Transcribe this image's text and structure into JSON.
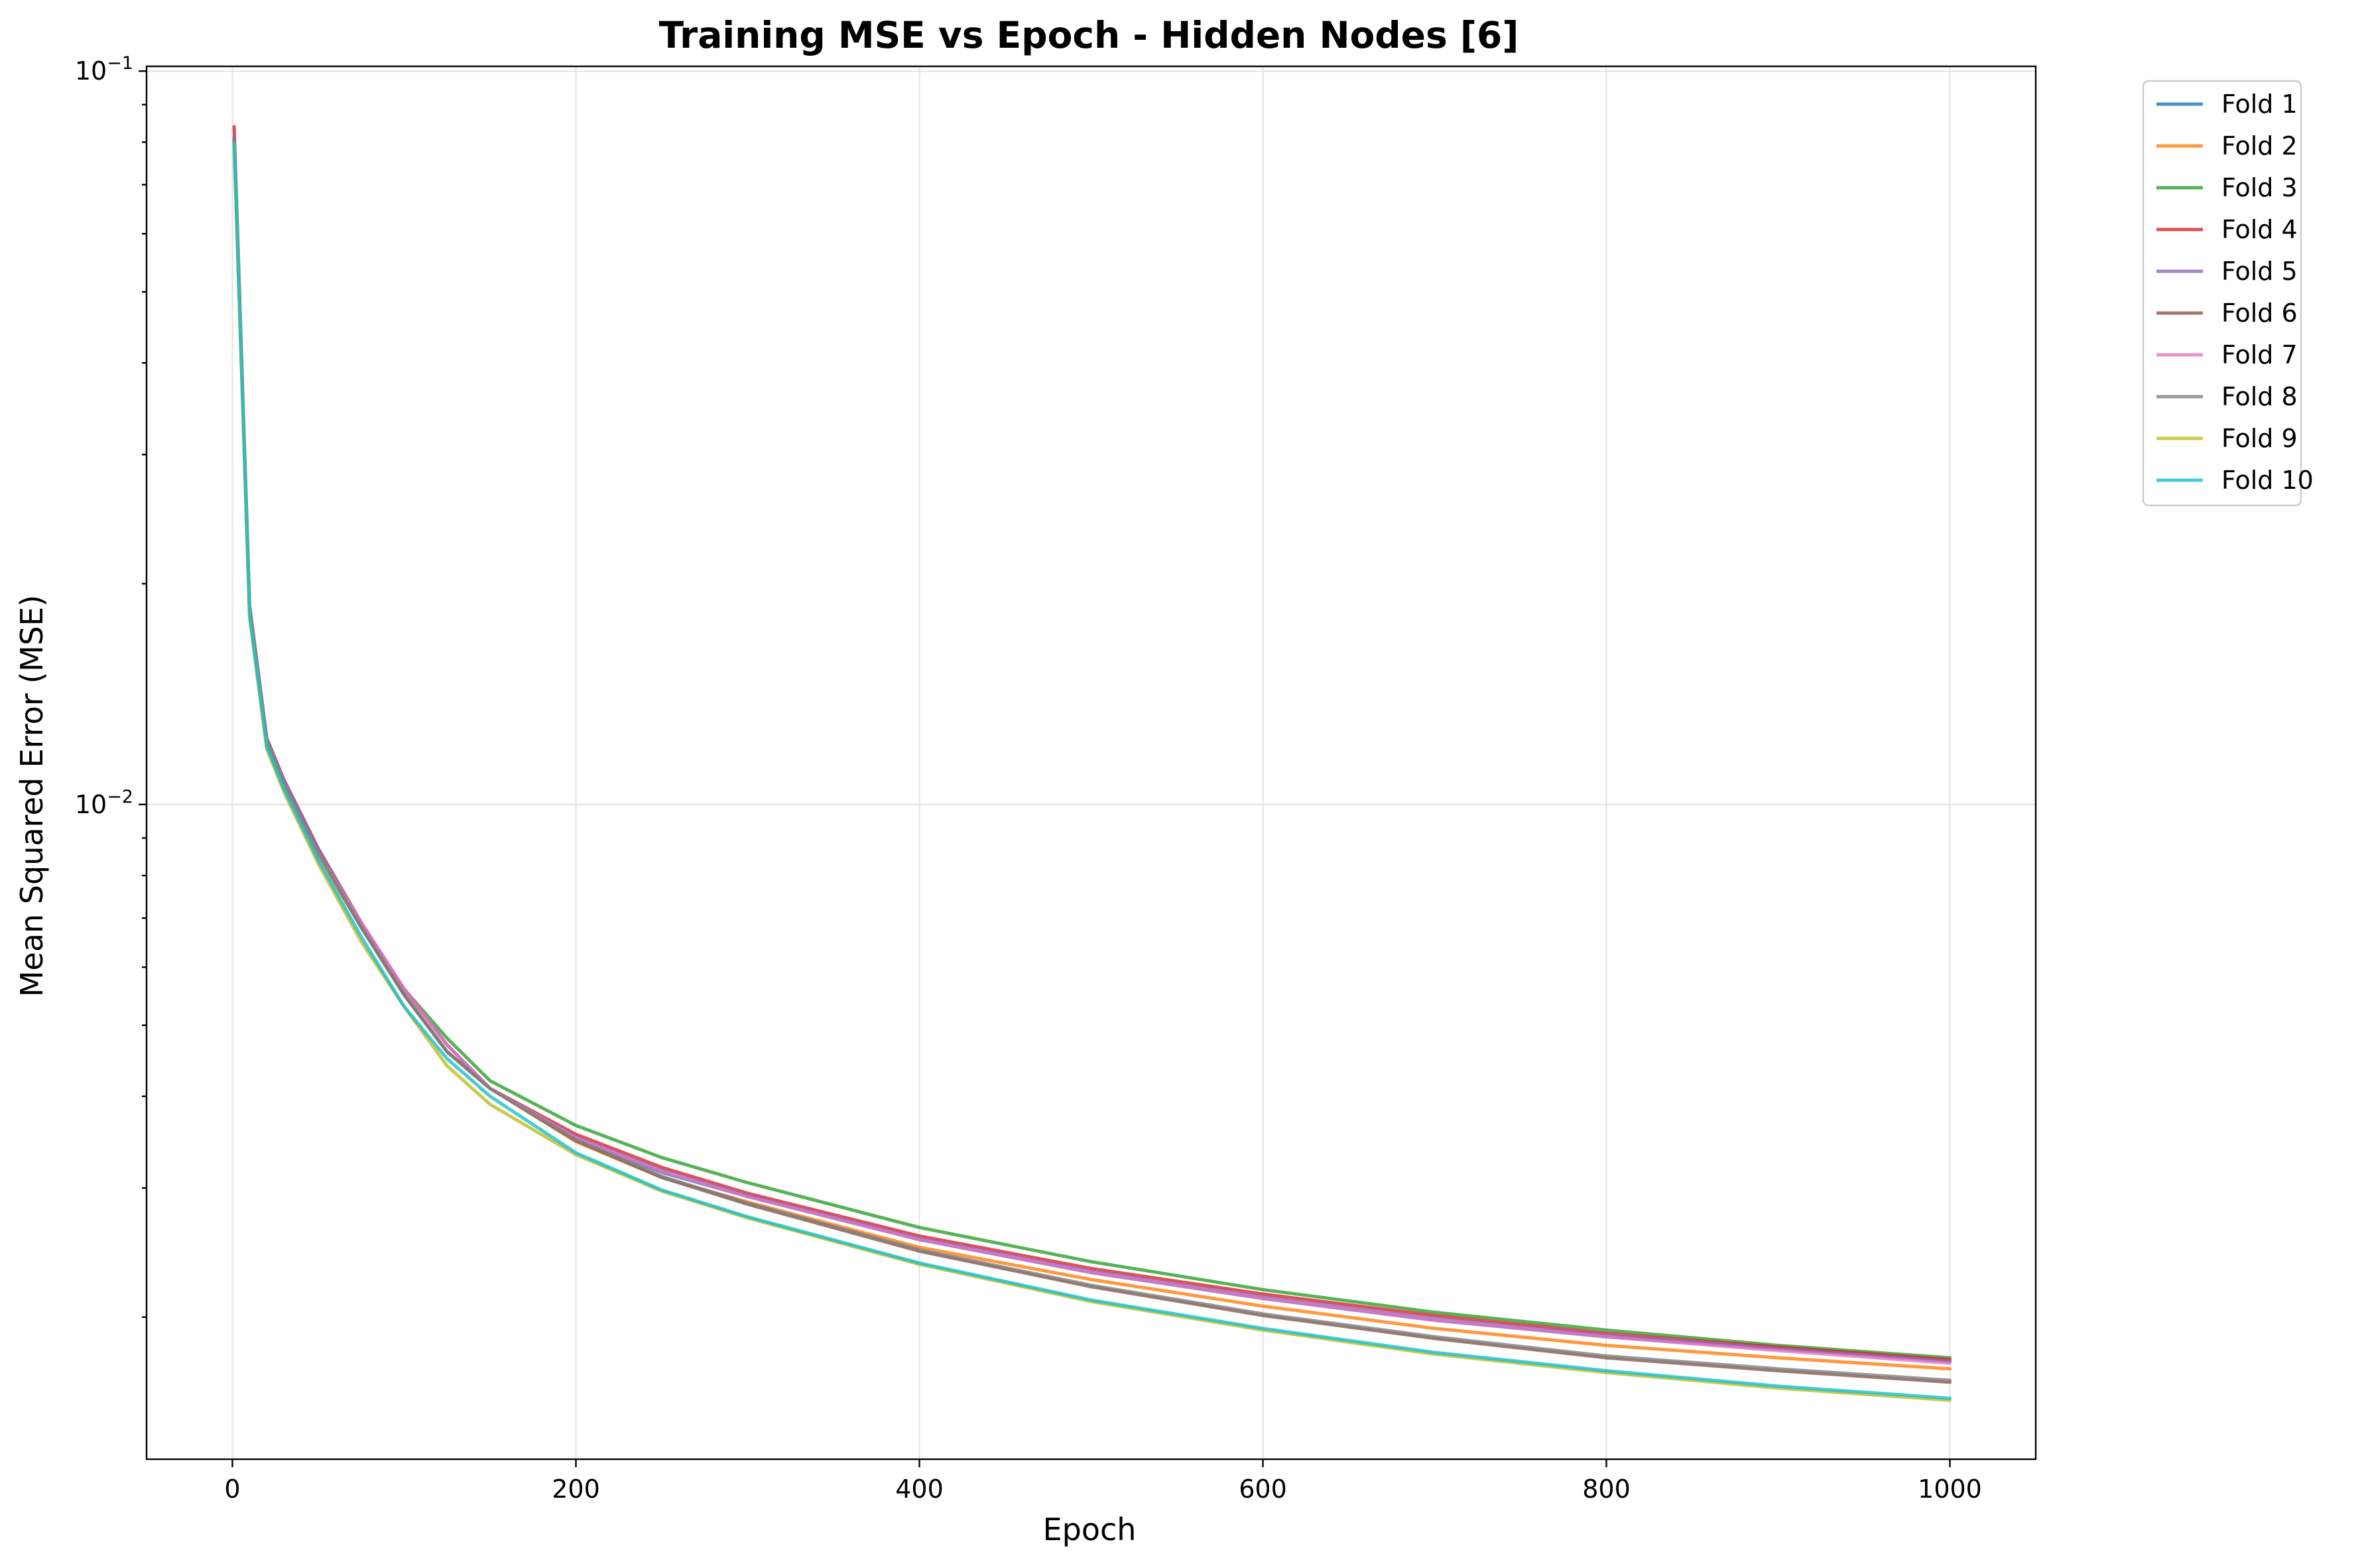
{
  "chart_data": {
    "type": "line",
    "title": "Training MSE vs Epoch - Hidden Nodes [6]",
    "xlabel": "Epoch",
    "ylabel": "Mean Squared Error (MSE)",
    "xlim": [
      -50,
      1050
    ],
    "ylim": [
      0.00128,
      0.1015
    ],
    "yscale": "log",
    "grid": true,
    "legend_position": "outside upper right",
    "x_ticks": [
      0,
      200,
      400,
      600,
      800,
      1000
    ],
    "x_tick_labels": [
      "0",
      "200",
      "400",
      "600",
      "800",
      "1000"
    ],
    "y_ticks": [
      0.01,
      0.1
    ],
    "y_tick_labels": [
      {
        "base": "10",
        "exp": "−2"
      },
      {
        "base": "10",
        "exp": "−1"
      }
    ],
    "x": [
      1,
      10,
      20,
      30,
      50,
      75,
      100,
      125,
      150,
      200,
      250,
      300,
      400,
      500,
      600,
      700,
      800,
      900,
      1000
    ],
    "series": [
      {
        "name": "Fold 1",
        "color": "#1f77b4",
        "values": [
          0.0805,
          0.0185,
          0.0122,
          0.0107,
          0.0086,
          0.0068,
          0.0055,
          0.0046,
          0.0041,
          0.0035,
          0.00315,
          0.00292,
          0.00255,
          0.0023,
          0.00212,
          0.00198,
          0.00188,
          0.00181,
          0.00174
        ]
      },
      {
        "name": "Fold 2",
        "color": "#ff7f0e",
        "values": [
          0.081,
          0.0183,
          0.0121,
          0.0106,
          0.0085,
          0.0068,
          0.0055,
          0.0046,
          0.0041,
          0.00347,
          0.0031,
          0.00287,
          0.00249,
          0.00225,
          0.00207,
          0.00193,
          0.00183,
          0.00176,
          0.0017
        ]
      },
      {
        "name": "Fold 3",
        "color": "#2ca02c",
        "values": [
          0.08,
          0.0186,
          0.0123,
          0.0108,
          0.0087,
          0.0069,
          0.0056,
          0.0048,
          0.0042,
          0.00365,
          0.0033,
          0.00305,
          0.00265,
          0.00238,
          0.00218,
          0.00203,
          0.00192,
          0.00183,
          0.00176
        ]
      },
      {
        "name": "Fold 4",
        "color": "#d62728",
        "values": [
          0.084,
          0.0187,
          0.0123,
          0.0108,
          0.0087,
          0.0069,
          0.0056,
          0.0047,
          0.0041,
          0.00355,
          0.0032,
          0.00295,
          0.00258,
          0.00233,
          0.00215,
          0.00201,
          0.0019,
          0.00182,
          0.00175
        ]
      },
      {
        "name": "Fold 5",
        "color": "#9467bd",
        "values": [
          0.0815,
          0.0186,
          0.0123,
          0.0108,
          0.0087,
          0.0069,
          0.0056,
          0.0047,
          0.0041,
          0.00352,
          0.00317,
          0.00293,
          0.00256,
          0.00231,
          0.00213,
          0.00199,
          0.00189,
          0.00181,
          0.00174
        ]
      },
      {
        "name": "Fold 6",
        "color": "#8c564b",
        "values": [
          0.0805,
          0.0184,
          0.0122,
          0.0107,
          0.0086,
          0.0068,
          0.0055,
          0.0046,
          0.0041,
          0.00348,
          0.0031,
          0.00285,
          0.00246,
          0.0022,
          0.00201,
          0.00187,
          0.00176,
          0.00169,
          0.00163
        ]
      },
      {
        "name": "Fold 7",
        "color": "#e377c2",
        "values": [
          0.08,
          0.0185,
          0.0122,
          0.0107,
          0.0086,
          0.0069,
          0.0056,
          0.0047,
          0.0041,
          0.00351,
          0.00316,
          0.00292,
          0.00255,
          0.0023,
          0.00212,
          0.00198,
          0.00188,
          0.0018,
          0.00173
        ]
      },
      {
        "name": "Fold 8",
        "color": "#7f7f7f",
        "values": [
          0.0805,
          0.0184,
          0.0122,
          0.0107,
          0.0086,
          0.0068,
          0.0055,
          0.0046,
          0.0041,
          0.00349,
          0.00311,
          0.00286,
          0.00247,
          0.00221,
          0.00202,
          0.00188,
          0.00177,
          0.0017,
          0.00164
        ]
      },
      {
        "name": "Fold 9",
        "color": "#bcbd22",
        "values": [
          0.0795,
          0.018,
          0.0119,
          0.0104,
          0.0083,
          0.0065,
          0.0053,
          0.0044,
          0.0039,
          0.00333,
          0.00297,
          0.00273,
          0.00236,
          0.0021,
          0.00192,
          0.00178,
          0.00168,
          0.0016,
          0.00154
        ]
      },
      {
        "name": "Fold 10",
        "color": "#17becf",
        "values": [
          0.0795,
          0.0181,
          0.012,
          0.0105,
          0.0084,
          0.0066,
          0.0053,
          0.0045,
          0.004,
          0.00335,
          0.00298,
          0.00274,
          0.00237,
          0.00211,
          0.00193,
          0.00179,
          0.00169,
          0.00161,
          0.00155
        ]
      }
    ]
  }
}
